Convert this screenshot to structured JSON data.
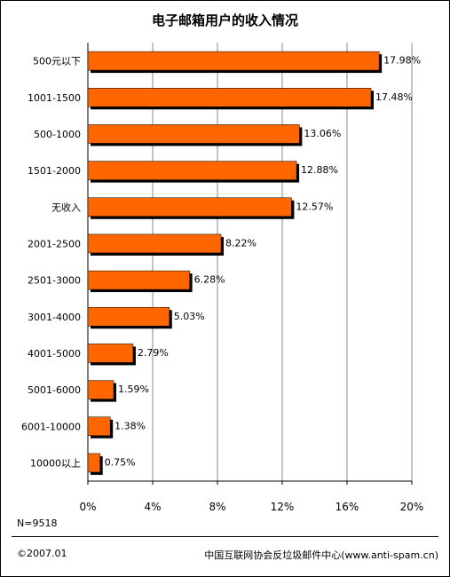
{
  "chart_data": {
    "type": "bar",
    "orientation": "horizontal",
    "title": "电子邮箱用户的收入情况",
    "categories": [
      "500元以下",
      "1001-1500",
      "500-1000",
      "1501-2000",
      "无收入",
      "2001-2500",
      "2501-3000",
      "3001-4000",
      "4001-5000",
      "5001-6000",
      "6001-10000",
      "10000以上"
    ],
    "values": [
      17.98,
      17.48,
      13.06,
      12.88,
      12.57,
      8.22,
      6.28,
      5.03,
      2.79,
      1.59,
      1.38,
      0.75
    ],
    "value_labels": [
      "17.98%",
      "17.48%",
      "13.06%",
      "12.88%",
      "12.57%",
      "8.22%",
      "6.28%",
      "5.03%",
      "2.79%",
      "1.59%",
      "1.38%",
      "0.75%"
    ],
    "x_ticks": [
      0,
      4,
      8,
      12,
      16,
      20
    ],
    "x_tick_labels": [
      "0%",
      "4%",
      "8%",
      "12%",
      "16%",
      "20%"
    ],
    "xlim": [
      0,
      20
    ],
    "xlabel": "",
    "ylabel": "",
    "grid": "vertical",
    "legend": "none",
    "colors": {
      "bar": "#ff6600",
      "bar_shadow": "#000000",
      "grid": "#888888",
      "axis": "#000000"
    }
  },
  "notes": {
    "sample_size": "N=9518",
    "copyright": "©2007.01",
    "source": "中国互联网协会反垃圾邮件中心(www.anti-spam.cn)"
  }
}
